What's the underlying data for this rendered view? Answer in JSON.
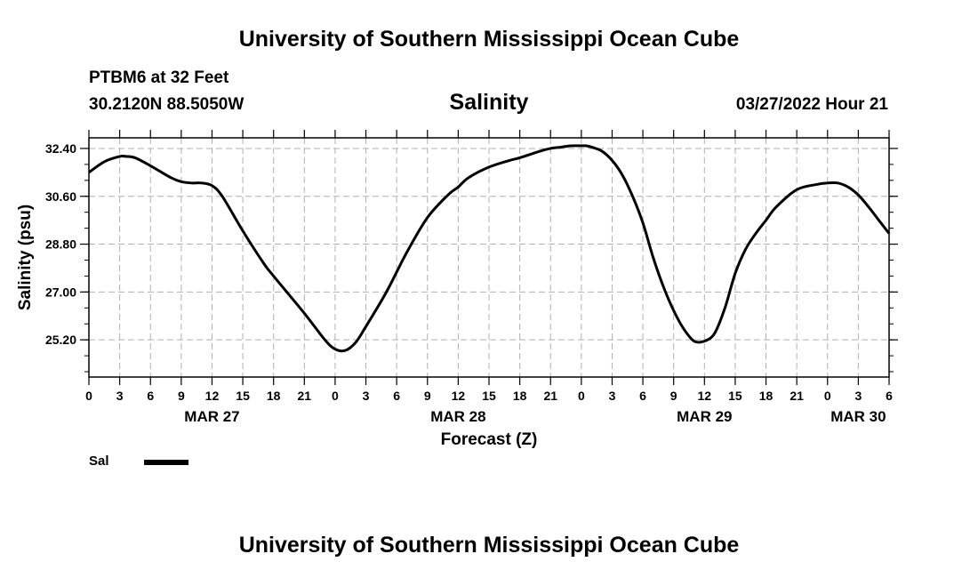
{
  "header": {
    "title": "University of Southern Mississippi Ocean Cube",
    "station": "PTBM6 at 32 Feet",
    "coordinates": "30.2120N  88.5050W",
    "datetime": "03/27/2022 Hour 21"
  },
  "footer": {
    "title": "University of Southern Mississippi Ocean Cube"
  },
  "legend": {
    "label": "Sal",
    "color": "#000000"
  },
  "chart_data": {
    "type": "line",
    "title": "Salinity",
    "xlabel": "Forecast (Z)",
    "ylabel": "Salinity (psu)",
    "xlim": [
      0,
      78
    ],
    "ylim": [
      23.8,
      32.8
    ],
    "yticks": [
      25.2,
      27.0,
      28.8,
      30.6,
      32.4
    ],
    "ytick_labels": [
      "25.20",
      "27.00",
      "28.80",
      "30.60",
      "32.40"
    ],
    "xtick_labels": [
      "0",
      "3",
      "6",
      "9",
      "12",
      "15",
      "18",
      "21",
      "0",
      "3",
      "6",
      "9",
      "12",
      "15",
      "18",
      "21",
      "0",
      "3",
      "6",
      "9",
      "12",
      "15",
      "18",
      "21",
      "0",
      "3",
      "6"
    ],
    "day_labels": [
      {
        "hour": 12,
        "label": "MAR 27"
      },
      {
        "hour": 36,
        "label": "MAR 28"
      },
      {
        "hour": 60,
        "label": "MAR 29"
      },
      {
        "hour": 75,
        "label": "MAR 30"
      }
    ],
    "grid": true,
    "series": [
      {
        "name": "Sal",
        "color": "#000000",
        "x": [
          0,
          1.5,
          3,
          3.6,
          4.5,
          6,
          8,
          9,
          10,
          11,
          12,
          13,
          15,
          17,
          18,
          21,
          23,
          24,
          25,
          26,
          27,
          29,
          31,
          33,
          35,
          36,
          37,
          39,
          41,
          42,
          44,
          45,
          46,
          47,
          48,
          48.5,
          49,
          50,
          51,
          52,
          53,
          54,
          55,
          56,
          57,
          58,
          59,
          60,
          61,
          62,
          63,
          64,
          65,
          66,
          67,
          69,
          71,
          72,
          73,
          74,
          75,
          76,
          77,
          78
        ],
        "y": [
          31.5,
          31.9,
          32.1,
          32.1,
          32.05,
          31.75,
          31.3,
          31.15,
          31.1,
          31.1,
          31.0,
          30.6,
          29.3,
          28.1,
          27.6,
          26.2,
          25.2,
          24.85,
          24.8,
          25.1,
          25.7,
          27.0,
          28.5,
          29.8,
          30.65,
          30.95,
          31.3,
          31.7,
          31.95,
          32.05,
          32.3,
          32.4,
          32.45,
          32.5,
          32.5,
          32.5,
          32.45,
          32.3,
          31.95,
          31.4,
          30.6,
          29.6,
          28.3,
          27.2,
          26.3,
          25.6,
          25.15,
          25.15,
          25.45,
          26.4,
          27.7,
          28.6,
          29.2,
          29.7,
          30.2,
          30.85,
          31.05,
          31.1,
          31.1,
          30.95,
          30.65,
          30.2,
          29.7,
          29.2
        ]
      }
    ]
  }
}
